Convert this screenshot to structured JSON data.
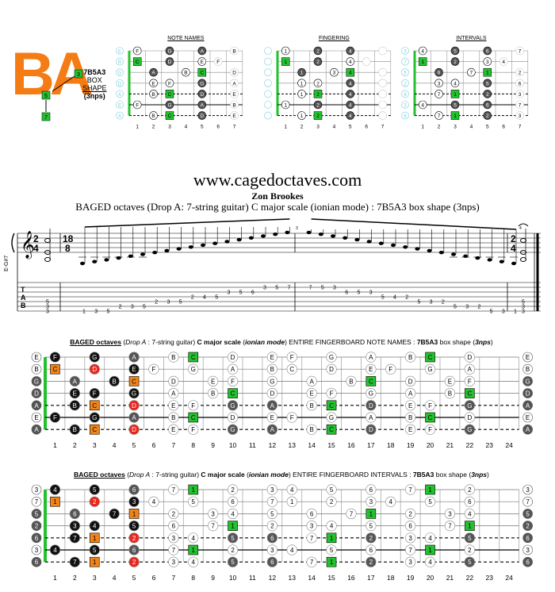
{
  "header": {
    "logo_text": "BA",
    "shape_code": "7B5A3",
    "shape_line2": "BOX",
    "shape_line3": "SHAPE",
    "shape_line4": "(3nps)",
    "site": "www.cagedoctaves.com",
    "author": "Zon Brookes",
    "subtitle": "BAGED octaves (Drop A: 7-string guitar) C major scale (ionian mode) : 7B5A3 box shape (3nps)"
  },
  "mini_panels": [
    {
      "title": "NOTE NAMES",
      "mode": "names"
    },
    {
      "title": "FINGERING",
      "mode": "fingers"
    },
    {
      "title": "INTERVALS",
      "mode": "intervals"
    }
  ],
  "tuning": [
    "E",
    "B",
    "G",
    "D",
    "A",
    "E",
    "A"
  ],
  "tuning_intervals": [
    "3",
    "7",
    "5",
    "2",
    "6",
    "3",
    "6"
  ],
  "scale_notes": [
    "C",
    "D",
    "E",
    "F",
    "G",
    "A",
    "B"
  ],
  "box_notes": [
    {
      "string": 1,
      "fret": 1,
      "finger": 1
    },
    {
      "string": 1,
      "fret": 3,
      "finger": 2
    },
    {
      "string": 1,
      "fret": 5,
      "finger": 4
    },
    {
      "string": 2,
      "fret": 1,
      "finger": 1
    },
    {
      "string": 2,
      "fret": 3,
      "finger": 2
    },
    {
      "string": 2,
      "fret": 5,
      "finger": 4
    },
    {
      "string": 3,
      "fret": 2,
      "finger": 1
    },
    {
      "string": 3,
      "fret": 4,
      "finger": 3
    },
    {
      "string": 3,
      "fret": 5,
      "finger": 4
    },
    {
      "string": 4,
      "fret": 2,
      "finger": 1
    },
    {
      "string": 4,
      "fret": 3,
      "finger": 2
    },
    {
      "string": 4,
      "fret": 5,
      "finger": 4
    },
    {
      "string": 5,
      "fret": 2,
      "finger": 1
    },
    {
      "string": 5,
      "fret": 3,
      "finger": 2
    },
    {
      "string": 5,
      "fret": 5,
      "finger": 4
    },
    {
      "string": 6,
      "fret": 1,
      "finger": 1
    },
    {
      "string": 6,
      "fret": 3,
      "finger": 2
    },
    {
      "string": 6,
      "fret": 5,
      "finger": 4
    },
    {
      "string": 7,
      "fret": 2,
      "finger": 1
    },
    {
      "string": 7,
      "fret": 3,
      "finger": 2
    },
    {
      "string": 7,
      "fret": 5,
      "finger": 4
    }
  ],
  "staff": {
    "tuning_label": "E-G#7",
    "time_sig_1": "2/4",
    "time_sig_2": "18/8",
    "tab_label": [
      "T",
      "A",
      "B"
    ],
    "tab_run": [
      {
        "s": 7,
        "f": "1"
      },
      {
        "s": 7,
        "f": "3"
      },
      {
        "s": 7,
        "f": "5"
      },
      {
        "s": 6,
        "f": "2"
      },
      {
        "s": 6,
        "f": "3"
      },
      {
        "s": 6,
        "f": "5"
      },
      {
        "s": 5,
        "f": "2"
      },
      {
        "s": 5,
        "f": "3"
      },
      {
        "s": 5,
        "f": "5"
      },
      {
        "s": 4,
        "f": "2"
      },
      {
        "s": 4,
        "f": "4"
      },
      {
        "s": 4,
        "f": "5"
      },
      {
        "s": 3,
        "f": "3"
      },
      {
        "s": 3,
        "f": "5"
      },
      {
        "s": 3,
        "f": "6"
      },
      {
        "s": 2,
        "f": "3"
      },
      {
        "s": 2,
        "f": "5"
      },
      {
        "s": 2,
        "f": "7"
      },
      {
        "s": 2,
        "f": "7"
      },
      {
        "s": 2,
        "f": "5"
      },
      {
        "s": 2,
        "f": "3"
      },
      {
        "s": 3,
        "f": "6"
      },
      {
        "s": 3,
        "f": "5"
      },
      {
        "s": 3,
        "f": "3"
      },
      {
        "s": 4,
        "f": "5"
      },
      {
        "s": 4,
        "f": "4"
      },
      {
        "s": 4,
        "f": "2"
      },
      {
        "s": 5,
        "f": "5"
      },
      {
        "s": 5,
        "f": "3"
      },
      {
        "s": 5,
        "f": "2"
      },
      {
        "s": 6,
        "f": "5"
      },
      {
        "s": 6,
        "f": "3"
      },
      {
        "s": 6,
        "f": "2"
      },
      {
        "s": 7,
        "f": "5"
      },
      {
        "s": 7,
        "f": "3"
      },
      {
        "s": 7,
        "f": "1"
      }
    ],
    "chord_start": [
      {
        "s": 5,
        "f": "5"
      },
      {
        "s": 6,
        "f": "3"
      },
      {
        "s": 7,
        "f": "3"
      }
    ],
    "chord_end": [
      {
        "s": 5,
        "f": "5"
      },
      {
        "s": 6,
        "f": "3"
      },
      {
        "s": 7,
        "f": "3"
      }
    ],
    "measure_numbers": [
      "3",
      "4"
    ]
  },
  "boards": [
    {
      "title_parts": [
        "BAGED octaves",
        " (",
        "Drop A",
        " : 7-string guitar) ",
        "C major scale",
        " (",
        "ionian mode",
        ") ENTIRE FINGERBOARD  NOTE NAMES : ",
        "7B5A3",
        " box shape (",
        "3nps",
        ")"
      ],
      "mode": "names"
    },
    {
      "title_parts": [
        "BAGED octaves",
        " (",
        "Drop A",
        " : 7-string guitar) ",
        "C major scale",
        " (",
        "ionian mode",
        ") ENTIRE FINGERBOARD INTERVALS : ",
        "7B5A3",
        " box shape (",
        "3nps",
        ")"
      ],
      "mode": "intervals"
    }
  ],
  "fret_numbers": [
    "1",
    "2",
    "3",
    "4",
    "5",
    "6",
    "7",
    "8",
    "9",
    "10",
    "11",
    "12",
    "13",
    "14",
    "15",
    "16",
    "17",
    "18",
    "19",
    "20",
    "21",
    "22",
    "23",
    "24"
  ],
  "colors": {
    "logo": "#f57c14",
    "green": "#22c22e",
    "orange": "#f0841a",
    "red": "#e8281e",
    "dark": "#555555",
    "black": "#111111",
    "nut": "#22c22e"
  }
}
